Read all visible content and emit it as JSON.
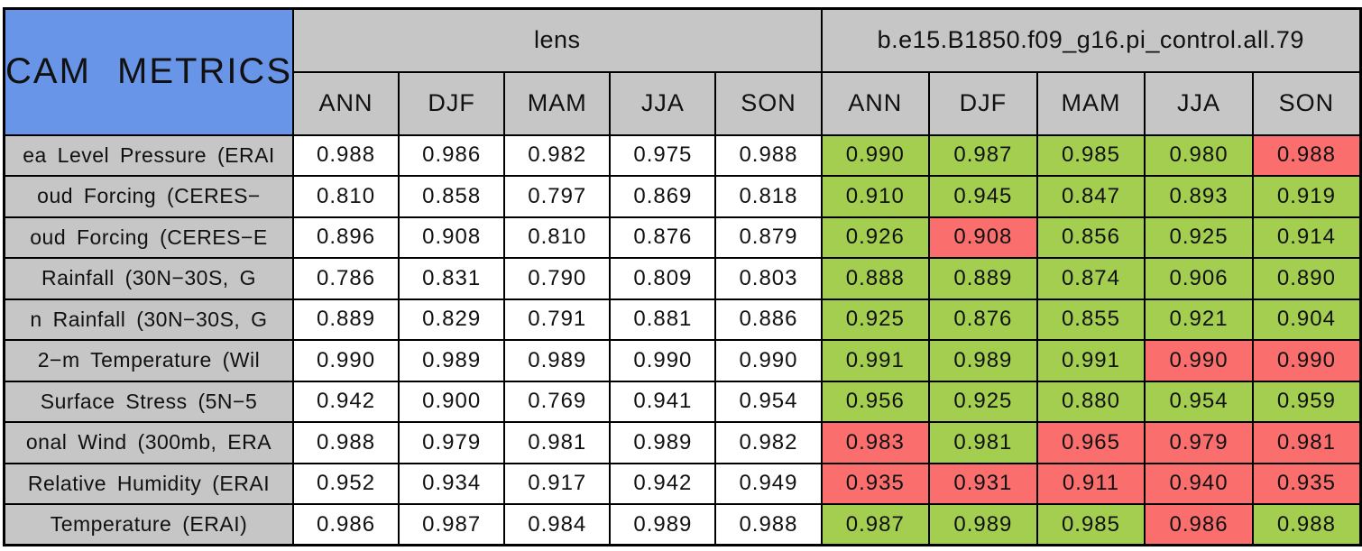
{
  "colors": {
    "blue": "#6995E8",
    "gray": "#C6C6C6",
    "green": "#A3CE50",
    "red": "#FA6E6E",
    "cell_white": "#FFFFFF",
    "border": "#000000"
  },
  "chart_data": {
    "type": "table",
    "title": "CAM METRICS",
    "column_groups": [
      {
        "key": "lens",
        "label": "lens",
        "columns": [
          "ANN",
          "DJF",
          "MAM",
          "JJA",
          "SON"
        ]
      },
      {
        "key": "control",
        "label": "b.e15.B1850.f09_g16.pi_control.all.79",
        "columns": [
          "ANN",
          "DJF",
          "MAM",
          "JJA",
          "SON"
        ]
      }
    ],
    "cell_color_meaning": {
      "green": "#A3CE50",
      "red": "#FA6E6E",
      "white": "#FFFFFF"
    },
    "rows": [
      {
        "label": "ea Level Pressure (ERAI",
        "lens": [
          "0.988",
          "0.986",
          "0.982",
          "0.975",
          "0.988"
        ],
        "control": [
          "0.990",
          "0.987",
          "0.985",
          "0.980",
          "0.988"
        ],
        "control_colors": [
          "green",
          "green",
          "green",
          "green",
          "red"
        ]
      },
      {
        "label": "oud Forcing (CERES−",
        "lens": [
          "0.810",
          "0.858",
          "0.797",
          "0.869",
          "0.818"
        ],
        "control": [
          "0.910",
          "0.945",
          "0.847",
          "0.893",
          "0.919"
        ],
        "control_colors": [
          "green",
          "green",
          "green",
          "green",
          "green"
        ]
      },
      {
        "label": "oud Forcing (CERES−E",
        "lens": [
          "0.896",
          "0.908",
          "0.810",
          "0.876",
          "0.879"
        ],
        "control": [
          "0.926",
          "0.908",
          "0.856",
          "0.925",
          "0.914"
        ],
        "control_colors": [
          "green",
          "red",
          "green",
          "green",
          "green"
        ]
      },
      {
        "label": "Rainfall (30N−30S, G",
        "lens": [
          "0.786",
          "0.831",
          "0.790",
          "0.809",
          "0.803"
        ],
        "control": [
          "0.888",
          "0.889",
          "0.874",
          "0.906",
          "0.890"
        ],
        "control_colors": [
          "green",
          "green",
          "green",
          "green",
          "green"
        ]
      },
      {
        "label": "n Rainfall (30N−30S, G",
        "lens": [
          "0.889",
          "0.829",
          "0.791",
          "0.881",
          "0.886"
        ],
        "control": [
          "0.925",
          "0.876",
          "0.855",
          "0.921",
          "0.904"
        ],
        "control_colors": [
          "green",
          "green",
          "green",
          "green",
          "green"
        ]
      },
      {
        "label": "2−m Temperature (Wil",
        "lens": [
          "0.990",
          "0.989",
          "0.989",
          "0.990",
          "0.990"
        ],
        "control": [
          "0.991",
          "0.989",
          "0.991",
          "0.990",
          "0.990"
        ],
        "control_colors": [
          "green",
          "green",
          "green",
          "red",
          "red"
        ]
      },
      {
        "label": "Surface Stress (5N−5",
        "lens": [
          "0.942",
          "0.900",
          "0.769",
          "0.941",
          "0.954"
        ],
        "control": [
          "0.956",
          "0.925",
          "0.880",
          "0.954",
          "0.959"
        ],
        "control_colors": [
          "green",
          "green",
          "green",
          "green",
          "green"
        ]
      },
      {
        "label": "onal Wind (300mb, ERA",
        "lens": [
          "0.988",
          "0.979",
          "0.981",
          "0.989",
          "0.982"
        ],
        "control": [
          "0.983",
          "0.981",
          "0.965",
          "0.979",
          "0.981"
        ],
        "control_colors": [
          "red",
          "green",
          "red",
          "red",
          "red"
        ]
      },
      {
        "label": "Relative Humidity (ERAI",
        "lens": [
          "0.952",
          "0.934",
          "0.917",
          "0.942",
          "0.949"
        ],
        "control": [
          "0.935",
          "0.931",
          "0.911",
          "0.940",
          "0.935"
        ],
        "control_colors": [
          "red",
          "red",
          "red",
          "red",
          "red"
        ]
      },
      {
        "label": "Temperature (ERAI)",
        "lens": [
          "0.986",
          "0.987",
          "0.984",
          "0.989",
          "0.988"
        ],
        "control": [
          "0.987",
          "0.989",
          "0.985",
          "0.986",
          "0.988"
        ],
        "control_colors": [
          "green",
          "green",
          "green",
          "red",
          "green"
        ]
      }
    ]
  }
}
